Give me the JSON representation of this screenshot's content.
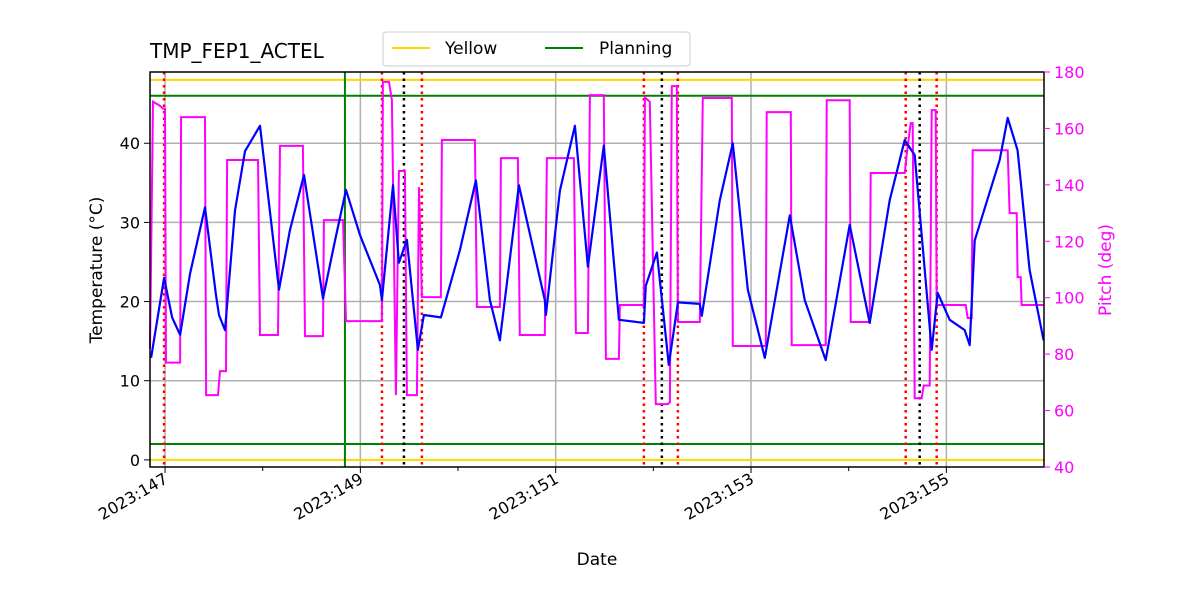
{
  "chart_data": {
    "type": "line",
    "title": "TMP_FEP1_ACTEL",
    "xlabel": "Date",
    "ylabel": "Temperature ($^\\circ$C)",
    "ylabel_display": "Temperature (°C)",
    "y2label": "Pitch (deg)",
    "xlim": [
      146.846,
      156.0
    ],
    "ylim": [
      -0.9,
      49
    ],
    "y2lim": [
      40,
      180
    ],
    "grid": true,
    "legend_placement": "top-center, above plot",
    "xticks": [
      {
        "value": 147,
        "label": "2023:147"
      },
      {
        "value": 149,
        "label": "2023:149"
      },
      {
        "value": 151,
        "label": "2023:151"
      },
      {
        "value": 153,
        "label": "2023:153"
      },
      {
        "value": 155,
        "label": "2023:155"
      }
    ],
    "xminor": [
      148,
      150,
      152,
      154
    ],
    "yticks": [
      0,
      10,
      20,
      30,
      40
    ],
    "y2ticks": [
      40,
      60,
      80,
      100,
      120,
      140,
      160,
      180
    ],
    "legend": [
      {
        "name": "Yellow",
        "color": "#ffd700"
      },
      {
        "name": "Planning",
        "color": "#008000"
      }
    ],
    "hlines": [
      {
        "y": 48,
        "color": "#ffd700"
      },
      {
        "y": 0,
        "color": "#ffd700"
      },
      {
        "y": 46,
        "color": "#008000"
      },
      {
        "y": 2,
        "color": "#008000"
      }
    ],
    "vline_solid": {
      "x": 148.842,
      "color": "#008000"
    },
    "vlines_red_dotted": [
      146.99,
      149.221,
      149.63,
      151.903,
      152.251,
      154.584,
      154.901
    ],
    "vlines_black_dotted": [
      149.446,
      152.087,
      154.727
    ],
    "colors": {
      "temperature": "#0000ff",
      "pitch": "#ff00ff",
      "axis2": "#ff00ff"
    },
    "temperature": {
      "x": [
        146.857,
        146.99,
        147.072,
        147.154,
        147.256,
        147.409,
        147.522,
        147.553,
        147.614,
        147.716,
        147.819,
        147.972,
        148.167,
        148.279,
        148.423,
        148.617,
        148.74,
        148.853,
        148.996,
        149.2,
        149.221,
        149.334,
        149.395,
        149.477,
        149.589,
        149.651,
        149.825,
        150.019,
        150.183,
        150.326,
        150.429,
        150.623,
        150.889,
        150.9,
        151.043,
        151.197,
        151.33,
        151.493,
        151.647,
        151.903,
        151.923,
        152.036,
        152.158,
        152.251,
        152.476,
        152.496,
        152.68,
        152.814,
        152.967,
        153.141,
        153.397,
        153.55,
        153.765,
        154.011,
        154.215,
        154.42,
        154.574,
        154.676,
        154.85,
        154.912,
        155.034,
        155.188,
        155.239,
        155.29,
        155.546,
        155.628,
        155.73,
        155.853,
        155.996
      ],
      "y": [
        12.9,
        23.0,
        18,
        15.8,
        23.5,
        31.9,
        20.8,
        18.3,
        16.4,
        31.5,
        39,
        42.2,
        21.5,
        29,
        36,
        20.4,
        27.7,
        34.1,
        28.4,
        22.1,
        20.2,
        34.7,
        24.9,
        27.8,
        13.9,
        18.3,
        18,
        26.5,
        35.3,
        20.2,
        15.1,
        34.7,
        20.2,
        18.3,
        34,
        42.2,
        24.4,
        39.7,
        17.7,
        17.3,
        22,
        26.2,
        12,
        19.9,
        19.7,
        18.2,
        32.8,
        40,
        21.5,
        12.9,
        30.9,
        20.2,
        12.6,
        29.7,
        17.3,
        32.8,
        40.4,
        38.5,
        13.9,
        21.1,
        17.7,
        16.4,
        14.5,
        27.7,
        37.9,
        43.2,
        39.1,
        24,
        15.1
      ]
    },
    "pitch": {
      "x": [
        146.846,
        146.877,
        146.949,
        146.98,
        147.0,
        147.01,
        147.154,
        147.164,
        147.409,
        147.42,
        147.542,
        147.563,
        147.624,
        147.635,
        147.952,
        147.972,
        148.157,
        148.177,
        148.412,
        148.433,
        148.617,
        148.627,
        148.822,
        148.853,
        149.221,
        149.231,
        149.293,
        149.323,
        149.364,
        149.395,
        149.456,
        149.477,
        149.579,
        149.6,
        149.63,
        149.825,
        149.835,
        150.173,
        150.193,
        150.429,
        150.439,
        150.613,
        150.633,
        150.889,
        150.91,
        151.186,
        151.207,
        151.33,
        151.35,
        151.493,
        151.514,
        151.647,
        151.657,
        151.903,
        151.913,
        151.964,
        152.025,
        152.148,
        152.169,
        152.189,
        152.24,
        152.251,
        152.476,
        152.506,
        152.803,
        152.814,
        153.151,
        153.161,
        153.407,
        153.417,
        153.765,
        153.775,
        154.011,
        154.021,
        154.215,
        154.226,
        154.574,
        154.594,
        154.635,
        154.656,
        154.676,
        154.748,
        154.768,
        154.83,
        154.85,
        154.891,
        154.901,
        155.198,
        155.219,
        155.26,
        155.27,
        155.628,
        155.648,
        155.72,
        155.73,
        155.761,
        155.771,
        155.996
      ],
      "y": [
        82,
        169.5,
        168,
        167,
        167,
        77,
        77,
        164,
        164,
        65.5,
        65.5,
        74,
        74,
        148.8,
        148.8,
        86.8,
        86.8,
        153.8,
        153.8,
        86.4,
        86.4,
        127.5,
        127.5,
        91.7,
        91.7,
        176.5,
        176.5,
        170,
        65.5,
        144.9,
        144.9,
        65.5,
        65.5,
        139.2,
        100.2,
        100.2,
        155.9,
        155.9,
        96.7,
        96.7,
        149.5,
        149.5,
        86.8,
        86.8,
        149.5,
        149.5,
        87.5,
        87.5,
        171.8,
        171.8,
        78.3,
        78.3,
        97.4,
        97.4,
        171,
        169.4,
        62.3,
        62.3,
        63,
        175,
        175,
        91.4,
        91.4,
        170.8,
        170.8,
        82.9,
        82.9,
        165.8,
        165.8,
        83.2,
        83.2,
        170,
        170,
        91.4,
        91.4,
        144.2,
        144.2,
        150.6,
        161.9,
        161.9,
        64.4,
        64.4,
        68.9,
        68.9,
        166.5,
        166.5,
        97.4,
        97.4,
        92.8,
        92.8,
        152.3,
        152.3,
        130,
        130,
        107.3,
        107.3,
        97.4,
        97.4
      ]
    }
  }
}
